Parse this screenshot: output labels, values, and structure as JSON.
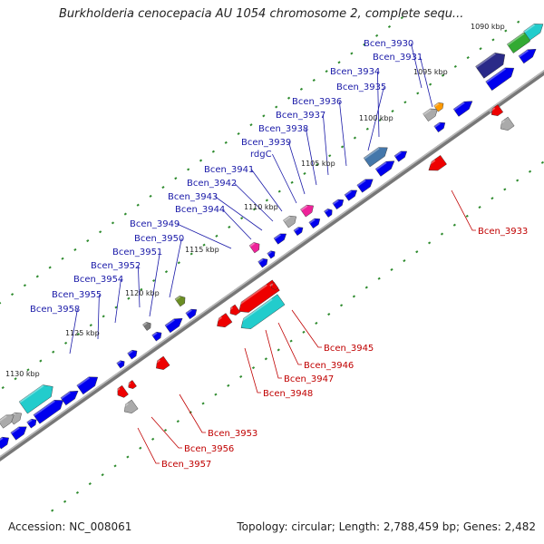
{
  "title": "Burkholderia cenocepacia AU 1054 chromosome 2, complete sequ...",
  "footer": {
    "accession": "Accession: NC_008061",
    "summary": "Topology: circular; Length: 2,788,459 bp; Genes: 2,482"
  },
  "kbp_ticks": [
    "1090 kbp",
    "1095 kbp",
    "1100 kbp",
    "1105 kbp",
    "1110 kbp",
    "1115 kbp",
    "1120 kbp",
    "1125 kbp",
    "1130 kbp"
  ],
  "genes_top": [
    "Bcen_3930",
    "Bcen_3931",
    "Bcen_3934",
    "Bcen_3935",
    "Bcen_3936",
    "Bcen_3937",
    "Bcen_3938",
    "Bcen_3939",
    "rdgC",
    "Bcen_3941",
    "Bcen_3942",
    "Bcen_3943",
    "Bcen_3944",
    "Bcen_3949",
    "Bcen_3950",
    "Bcen_3951",
    "Bcen_3952",
    "Bcen_3954",
    "Bcen_3955",
    "Bcen_3958"
  ],
  "genes_bottom": [
    "Bcen_3933",
    "Bcen_3945",
    "Bcen_3946",
    "Bcen_3947",
    "Bcen_3948",
    "Bcen_3953",
    "Bcen_3956",
    "Bcen_3957"
  ],
  "colors": {
    "forward_gene": "#0000ee",
    "reverse_gene": "#ee0000",
    "label_forward": "#1a1aa8",
    "label_reverse": "#c00000",
    "backbone": "#888888",
    "tick": "#2e8b2e"
  }
}
